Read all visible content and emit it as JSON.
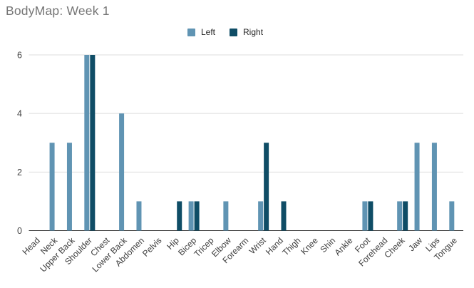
{
  "title": "BodyMap: Week 1",
  "legend": {
    "left_label": "Left",
    "right_label": "Right"
  },
  "colors": {
    "left_series": "#6094b3",
    "right_series": "#0f4d66",
    "title_text": "#757575",
    "axis_text": "#3c3c3c",
    "gridline": "#dddddd",
    "baseline": "#333333",
    "background": "#ffffff"
  },
  "chart_data": {
    "type": "bar",
    "title": "BodyMap: Week 1",
    "xlabel": "",
    "ylabel": "",
    "ylim": [
      0,
      6
    ],
    "yticks": [
      0,
      2,
      4,
      6
    ],
    "grid": true,
    "legend_position": "top",
    "categories": [
      "Head",
      "Neck",
      "Upper Back",
      "Shoulder",
      "Chest",
      "Lower Back",
      "Abdomen",
      "Pelvis",
      "Hip",
      "Bicep",
      "Tricep",
      "Elbow",
      "Forearm",
      "Wrist",
      "Hand",
      "Thigh",
      "Knee",
      "Shin",
      "Ankle",
      "Foot",
      "Forehead",
      "Cheek",
      "Jaw",
      "Lips",
      "Tongue"
    ],
    "series": [
      {
        "name": "Left",
        "color": "#6094b3",
        "values": [
          0,
          3,
          3,
          6,
          0,
          4,
          1,
          0,
          0,
          1,
          0,
          1,
          0,
          1,
          0,
          0,
          0,
          0,
          0,
          1,
          0,
          1,
          3,
          3,
          1
        ]
      },
      {
        "name": "Right",
        "color": "#0f4d66",
        "values": [
          0,
          0,
          0,
          6,
          0,
          0,
          0,
          0,
          1,
          1,
          0,
          0,
          0,
          3,
          1,
          0,
          0,
          0,
          0,
          1,
          0,
          1,
          0,
          0,
          0
        ]
      }
    ]
  }
}
